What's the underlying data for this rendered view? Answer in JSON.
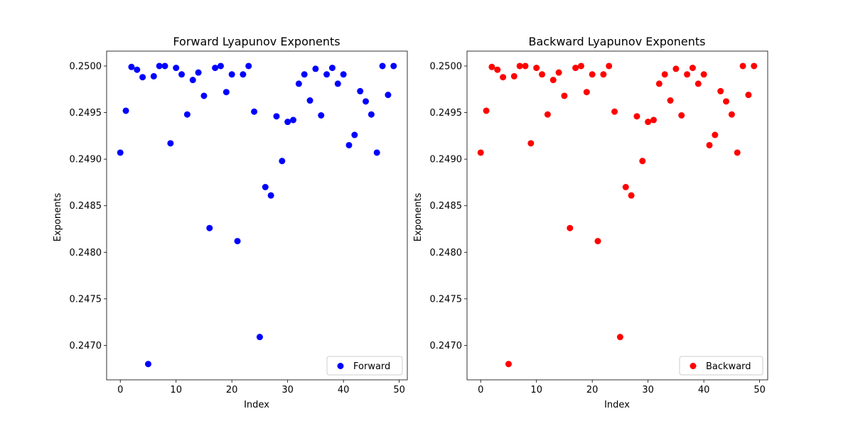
{
  "chart_data": [
    {
      "type": "scatter",
      "title": "Forward Lyapunov Exponents",
      "xlabel": "Index",
      "ylabel": "Exponents",
      "xlim": [
        -2.45,
        51.45
      ],
      "ylim": [
        0.24663,
        0.25016
      ],
      "xticks": [
        0,
        10,
        20,
        30,
        40,
        50
      ],
      "yticks": [
        0.247,
        0.2475,
        0.248,
        0.2485,
        0.249,
        0.2495,
        0.25
      ],
      "ytick_labels": [
        "0.2470",
        "0.2475",
        "0.2480",
        "0.2485",
        "0.2490",
        "0.2495",
        "0.2500"
      ],
      "grid": false,
      "legend": "lower right",
      "series": [
        {
          "name": "Forward",
          "color": "#0000ff",
          "x": [
            0,
            1,
            2,
            3,
            4,
            5,
            6,
            7,
            8,
            9,
            10,
            11,
            12,
            13,
            14,
            15,
            16,
            17,
            18,
            19,
            20,
            21,
            22,
            23,
            24,
            25,
            26,
            27,
            28,
            29,
            30,
            31,
            32,
            33,
            34,
            35,
            36,
            37,
            38,
            39,
            40,
            41,
            42,
            43,
            44,
            45,
            46,
            47,
            48,
            49
          ],
          "y": [
            0.24907,
            0.24952,
            0.24999,
            0.24996,
            0.24988,
            0.2468,
            0.24989,
            0.25,
            0.25,
            0.24917,
            0.24998,
            0.24991,
            0.24948,
            0.24985,
            0.24993,
            0.24968,
            0.24826,
            0.24998,
            0.25,
            0.24972,
            0.24991,
            0.24812,
            0.24991,
            0.25,
            0.24951,
            0.24709,
            0.2487,
            0.24861,
            0.24946,
            0.24898,
            0.2494,
            0.24942,
            0.24981,
            0.24991,
            0.24963,
            0.24997,
            0.24947,
            0.24991,
            0.24998,
            0.24981,
            0.24991,
            0.24915,
            0.24926,
            0.24973,
            0.24962,
            0.24948,
            0.24907,
            0.25,
            0.24969,
            0.25
          ]
        }
      ]
    },
    {
      "type": "scatter",
      "title": "Backward Lyapunov Exponents",
      "xlabel": "Index",
      "ylabel": "Exponents",
      "xlim": [
        -2.45,
        51.45
      ],
      "ylim": [
        0.24663,
        0.25016
      ],
      "xticks": [
        0,
        10,
        20,
        30,
        40,
        50
      ],
      "yticks": [
        0.247,
        0.2475,
        0.248,
        0.2485,
        0.249,
        0.2495,
        0.25
      ],
      "ytick_labels": [
        "0.2470",
        "0.2475",
        "0.2480",
        "0.2485",
        "0.2490",
        "0.2495",
        "0.2500"
      ],
      "grid": false,
      "legend": "lower right",
      "series": [
        {
          "name": "Backward",
          "color": "#ff0000",
          "x": [
            0,
            1,
            2,
            3,
            4,
            5,
            6,
            7,
            8,
            9,
            10,
            11,
            12,
            13,
            14,
            15,
            16,
            17,
            18,
            19,
            20,
            21,
            22,
            23,
            24,
            25,
            26,
            27,
            28,
            29,
            30,
            31,
            32,
            33,
            34,
            35,
            36,
            37,
            38,
            39,
            40,
            41,
            42,
            43,
            44,
            45,
            46,
            47,
            48,
            49
          ],
          "y": [
            0.24907,
            0.24952,
            0.24999,
            0.24996,
            0.24988,
            0.2468,
            0.24989,
            0.25,
            0.25,
            0.24917,
            0.24998,
            0.24991,
            0.24948,
            0.24985,
            0.24993,
            0.24968,
            0.24826,
            0.24998,
            0.25,
            0.24972,
            0.24991,
            0.24812,
            0.24991,
            0.25,
            0.24951,
            0.24709,
            0.2487,
            0.24861,
            0.24946,
            0.24898,
            0.2494,
            0.24942,
            0.24981,
            0.24991,
            0.24963,
            0.24997,
            0.24947,
            0.24991,
            0.24998,
            0.24981,
            0.24991,
            0.24915,
            0.24926,
            0.24973,
            0.24962,
            0.24948,
            0.24907,
            0.25,
            0.24969,
            0.25
          ]
        }
      ]
    }
  ]
}
